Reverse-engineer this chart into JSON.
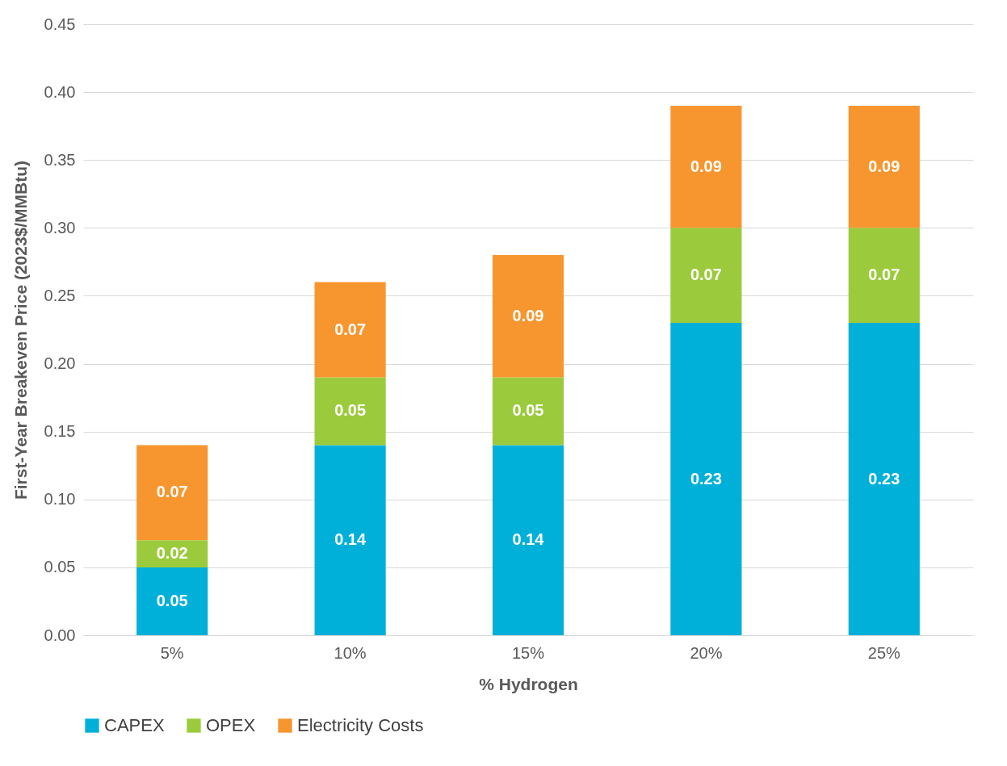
{
  "chart_data": {
    "type": "bar",
    "stacked": true,
    "xlabel": "% Hydrogen",
    "ylabel": "First-Year Breakeven Price (2023$/MMBtu)",
    "categories": [
      "5%",
      "10%",
      "15%",
      "20%",
      "25%"
    ],
    "series": [
      {
        "name": "CAPEX",
        "color": "#00b0d8",
        "values": [
          0.05,
          0.14,
          0.14,
          0.23,
          0.23
        ]
      },
      {
        "name": "OPEX",
        "color": "#9bcb3c",
        "values": [
          0.02,
          0.05,
          0.05,
          0.07,
          0.07
        ]
      },
      {
        "name": "Electricity Costs",
        "color": "#f7962f",
        "values": [
          0.07,
          0.07,
          0.09,
          0.09,
          0.09
        ]
      }
    ],
    "ylim": [
      0,
      0.45
    ],
    "yticks": [
      {
        "value": 0,
        "label": "0.00"
      },
      {
        "value": 0.05,
        "label": "0.05"
      },
      {
        "value": 0.1,
        "label": "0.10"
      },
      {
        "value": 0.15,
        "label": "0.15"
      },
      {
        "value": 0.2,
        "label": "0.20"
      },
      {
        "value": 0.25,
        "label": "0.25"
      },
      {
        "value": 0.3,
        "label": "0.30"
      },
      {
        "value": 0.35,
        "label": "0.35"
      },
      {
        "value": 0.4,
        "label": "0.40"
      },
      {
        "value": 0.45,
        "label": "0.45"
      }
    ],
    "grid": "y",
    "legend": "bottom",
    "data_labels": true
  }
}
